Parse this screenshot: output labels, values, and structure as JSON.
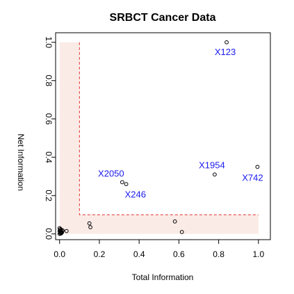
{
  "chart_data": {
    "type": "scatter",
    "title": "SRBCT Cancer Data",
    "xlabel": "Total Information",
    "ylabel": "Net Information",
    "xlim": [
      -0.02,
      1.06
    ],
    "ylim": [
      -0.03,
      1.05
    ],
    "x_ticks": [
      0.0,
      0.2,
      0.4,
      0.6,
      0.8,
      1.0
    ],
    "x_tick_labels": [
      "0.0",
      "0.2",
      "0.4",
      "0.6",
      "0.8",
      "1.0"
    ],
    "y_ticks": [
      0.0,
      0.2,
      0.4,
      0.6,
      0.8,
      1.0
    ],
    "y_tick_labels": [
      "0.0",
      "0.2",
      "0.4",
      "0.6",
      "0.8",
      "1.0"
    ],
    "grid": false,
    "threshold": {
      "x": 0.1,
      "y": 0.1,
      "color": "#e03030",
      "region_color": "#fbebe6"
    },
    "labeled_points": [
      {
        "label": "X123",
        "x": 0.84,
        "y": 1.0
      },
      {
        "label": "X742",
        "x": 0.995,
        "y": 0.35
      },
      {
        "label": "X1954",
        "x": 0.78,
        "y": 0.31
      },
      {
        "label": "X2050",
        "x": 0.315,
        "y": 0.27
      },
      {
        "label": "X246",
        "x": 0.335,
        "y": 0.26
      }
    ],
    "points": [
      {
        "x": 0.84,
        "y": 1.0
      },
      {
        "x": 0.995,
        "y": 0.35
      },
      {
        "x": 0.78,
        "y": 0.31
      },
      {
        "x": 0.315,
        "y": 0.27
      },
      {
        "x": 0.335,
        "y": 0.26
      },
      {
        "x": 0.58,
        "y": 0.065
      },
      {
        "x": 0.615,
        "y": 0.01
      },
      {
        "x": 0.15,
        "y": 0.055
      },
      {
        "x": 0.155,
        "y": 0.035
      },
      {
        "x": 0.035,
        "y": 0.015
      },
      {
        "x": 0.0,
        "y": 0.03
      },
      {
        "x": 0.005,
        "y": 0.025
      },
      {
        "x": 0.01,
        "y": 0.02
      },
      {
        "x": 0.0,
        "y": 0.015
      },
      {
        "x": 0.008,
        "y": 0.01
      },
      {
        "x": 0.003,
        "y": 0.005
      },
      {
        "x": 0.012,
        "y": 0.008
      },
      {
        "x": 0.0,
        "y": 0.0
      },
      {
        "x": 0.006,
        "y": 0.002
      },
      {
        "x": 0.015,
        "y": 0.018
      },
      {
        "x": 0.002,
        "y": 0.022
      },
      {
        "x": 0.009,
        "y": 0.004
      },
      {
        "x": 0.004,
        "y": 0.012
      }
    ]
  }
}
